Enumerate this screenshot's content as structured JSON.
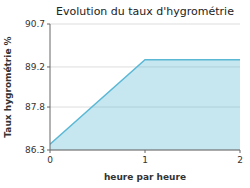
{
  "chart_data": {
    "type": "area",
    "title": "Evolution du taux d'hygrométrie",
    "x_label": "heure par heure",
    "y_label": "Taux hygrométrie %",
    "x": [
      0,
      1,
      2
    ],
    "values": [
      86.5,
      89.45,
      89.45
    ],
    "color": "#5bb8d4",
    "xlim": [
      0,
      2
    ],
    "ylim": [
      86.3,
      90.7
    ],
    "xticks": [
      0,
      1,
      2
    ],
    "yticks": [
      86.3,
      87.8,
      89.2,
      90.7
    ],
    "grid": true
  }
}
